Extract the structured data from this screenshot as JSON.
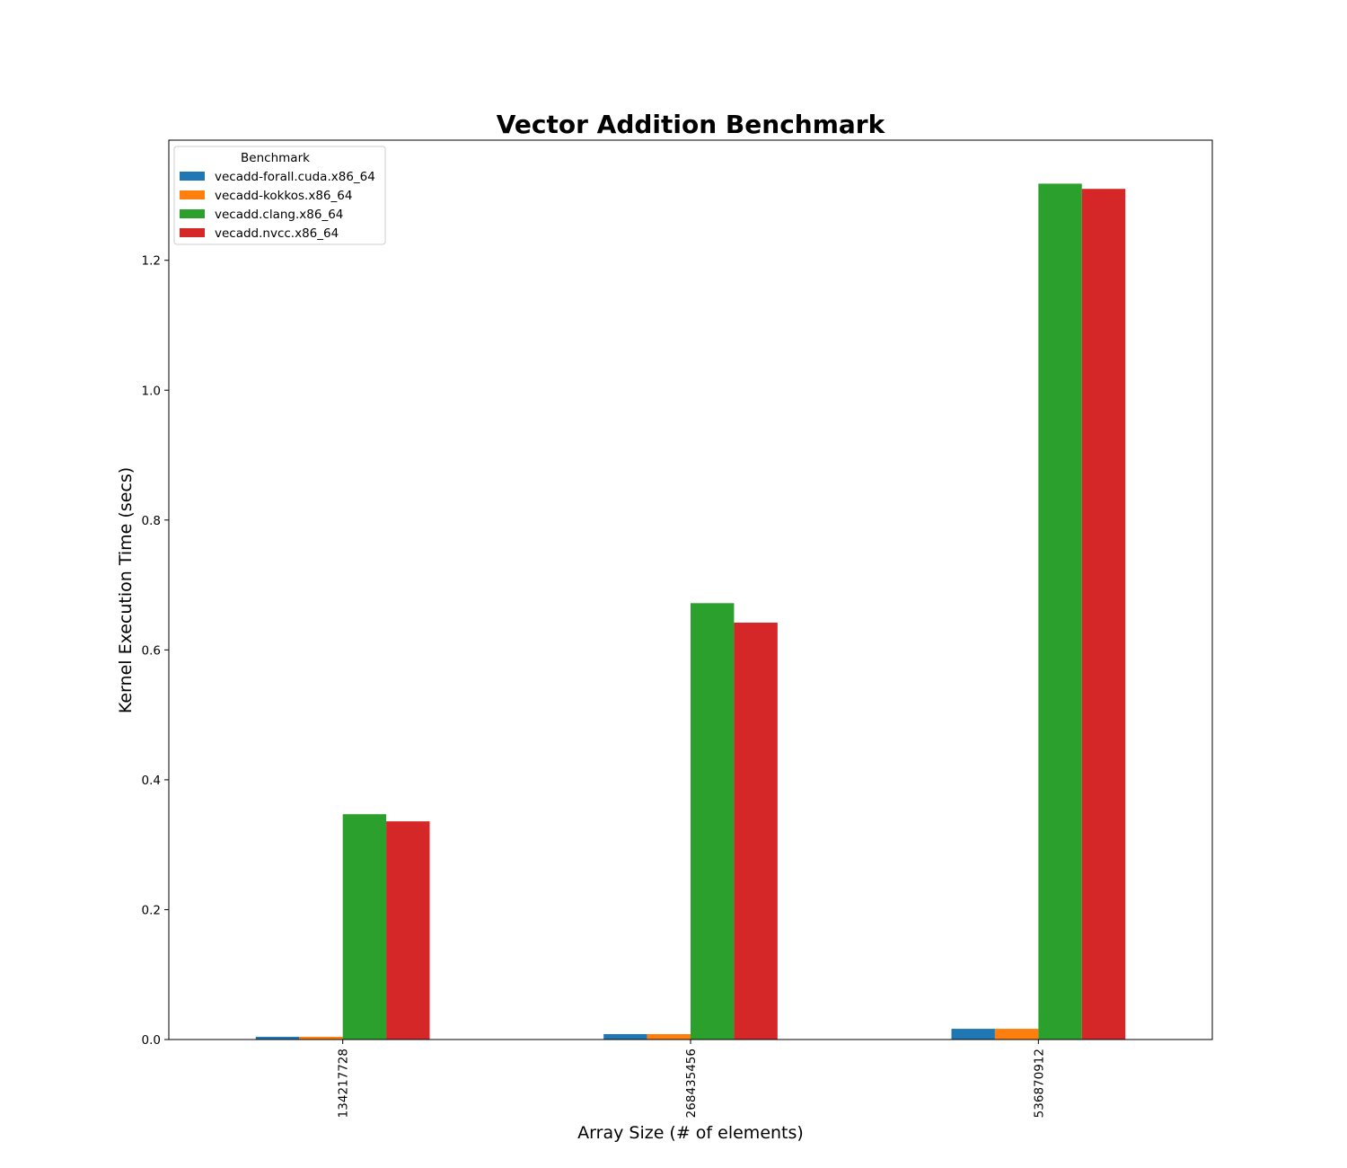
{
  "chart_data": {
    "type": "bar",
    "title": "Vector Addition Benchmark",
    "xlabel": "Array Size (# of elements)",
    "ylabel": "Kernel Execution Time (secs)",
    "categories": [
      "134217728",
      "268435456",
      "536870912"
    ],
    "series": [
      {
        "name": "vecadd-forall.cuda.x86_64",
        "color": "#1f77b4",
        "values": [
          0.0042,
          0.0083,
          0.0165
        ]
      },
      {
        "name": "vecadd-kokkos.x86_64",
        "color": "#ff7f0e",
        "values": [
          0.0042,
          0.0083,
          0.0165
        ]
      },
      {
        "name": "vecadd.clang.x86_64",
        "color": "#2ca02c",
        "values": [
          0.347,
          0.672,
          1.318
        ]
      },
      {
        "name": "vecadd.nvcc.x86_64",
        "color": "#d62728",
        "values": [
          0.336,
          0.642,
          1.31
        ]
      }
    ],
    "ylim": [
      0,
      1.385
    ],
    "yticks": [
      0.0,
      0.2,
      0.4,
      0.6,
      0.8,
      1.0,
      1.2
    ],
    "ytick_labels": [
      "0.0",
      "0.2",
      "0.4",
      "0.6",
      "0.8",
      "1.0",
      "1.2"
    ],
    "grid": false,
    "legend": {
      "title": "Benchmark",
      "placement": "top-left"
    }
  }
}
